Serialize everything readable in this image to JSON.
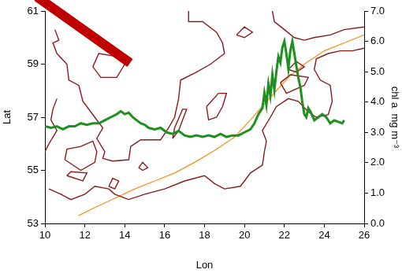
{
  "chart_data": {
    "type": "line",
    "x_label": "Lon",
    "y_label": "Lat",
    "y2_label": "chl a  mg m⁻³",
    "xlim": [
      10,
      26
    ],
    "xticks": [
      10,
      12,
      14,
      16,
      18,
      20,
      22,
      24,
      26
    ],
    "ylim": [
      53,
      61
    ],
    "yticks": [
      53,
      55,
      57,
      59,
      61
    ],
    "y2lim": [
      0,
      7
    ],
    "y2ticks": [
      {
        "value": 0,
        "label": "0.0"
      },
      {
        "value": 1,
        "label": "1.0"
      },
      {
        "value": 2,
        "label": "2.0"
      },
      {
        "value": 3,
        "label": "3.0"
      },
      {
        "value": 4,
        "label": "4.0"
      },
      {
        "value": 5,
        "label": "5.0"
      },
      {
        "value": 6,
        "label": "6.0"
      },
      {
        "value": 7,
        "label": "7.0"
      }
    ],
    "grid": false,
    "marker": "none",
    "line_style": "solid",
    "series": [
      {
        "color": "#8b1a1a",
        "x": [
          17.2,
          17.2,
          17.9,
          18.6,
          18.9,
          19.0,
          18.3,
          17.6,
          16.8,
          16.7,
          16.5,
          16.2,
          15.8,
          14.8,
          14.3,
          14.2,
          13.4,
          12.9,
          13.0,
          12.6,
          12.9,
          12.3,
          11.9,
          11.7,
          11.2,
          11.1,
          10.6,
          10.4,
          10.7,
          10.5,
          null,
          10.6,
          10.4,
          10.3,
          10.6,
          10.2,
          10.0,
          null,
          10.2,
          10.8,
          11.3,
          12.0,
          12.5,
          13.2,
          13.5,
          14.2,
          15.0,
          16.0,
          17.0,
          18.0,
          18.5,
          19.0,
          19.8,
          20.3,
          20.9,
          21.0,
          21.1,
          20.9,
          21.3,
          21.6,
          22.2,
          22.7,
          23.2,
          23.6,
          24.2,
          24.4,
          24.3,
          23.8,
          23.5,
          23.6,
          24.2,
          24.8,
          25.4,
          26.0,
          null,
          21.4,
          21.5,
          22.0,
          22.5,
          23.0,
          23.5,
          24.3,
          25.0,
          26.0,
          null,
          18.1,
          18.7,
          19.1,
          18.9,
          18.6,
          18.2,
          18.1,
          null,
          16.4,
          16.7,
          17.1,
          16.9,
          16.5,
          16.4,
          null,
          14.7,
          14.9,
          15.15,
          14.9,
          14.7,
          null,
          21.8,
          22.3,
          23.2,
          23.0,
          22.1,
          21.8,
          null,
          22.2,
          22.6,
          23.0,
          22.6,
          22.2,
          null,
          11.0,
          11.8,
          12.5,
          12.6,
          12.4,
          11.8,
          11.1,
          11.0,
          null,
          11.1,
          11.9,
          12.1,
          11.3,
          11.1,
          null,
          13.2,
          13.4,
          13.7,
          13.5,
          13.2,
          null,
          12.4,
          12.7,
          13.5,
          14.0,
          13.6,
          12.8,
          12.4,
          null,
          19.6,
          20.0,
          20.4,
          20.0,
          19.6
        ],
        "values": [
          61.0,
          60.6,
          60.6,
          60.2,
          59.8,
          59.4,
          59.0,
          58.7,
          58.4,
          57.7,
          57.0,
          56.6,
          56.15,
          56.15,
          55.9,
          55.4,
          55.35,
          55.45,
          55.7,
          56.2,
          56.6,
          57.2,
          57.6,
          58.2,
          58.4,
          59.0,
          59.4,
          59.8,
          59.9,
          60.3,
          null,
          57.7,
          57.3,
          56.9,
          56.5,
          56.0,
          55.7,
          null,
          54.3,
          54.1,
          53.9,
          54.1,
          54.4,
          54.3,
          54.1,
          53.9,
          54.1,
          54.3,
          54.6,
          54.8,
          54.5,
          54.3,
          54.4,
          54.9,
          55.2,
          55.7,
          56.1,
          56.5,
          57.0,
          57.4,
          57.7,
          57.6,
          57.2,
          57.0,
          57.1,
          57.6,
          58.2,
          58.4,
          58.8,
          59.2,
          59.4,
          59.5,
          59.5,
          59.6,
          null,
          61.0,
          60.6,
          60.3,
          60.0,
          59.9,
          60.0,
          60.1,
          60.3,
          60.4,
          null,
          57.4,
          57.9,
          57.9,
          57.4,
          57.0,
          56.9,
          57.4,
          null,
          56.2,
          56.5,
          57.3,
          57.3,
          56.6,
          56.2,
          null,
          55.1,
          55.3,
          55.1,
          55.0,
          55.1,
          null,
          58.3,
          58.6,
          58.5,
          58.2,
          57.9,
          58.3,
          null,
          58.8,
          59.1,
          58.9,
          58.7,
          58.8,
          null,
          55.4,
          55.0,
          55.3,
          55.7,
          56.1,
          55.9,
          55.8,
          55.4,
          null,
          54.8,
          54.6,
          54.9,
          54.95,
          54.8,
          null,
          54.4,
          54.7,
          54.6,
          54.3,
          54.4,
          null,
          58.9,
          59.4,
          59.3,
          59.0,
          58.5,
          58.5,
          58.9,
          null,
          60.1,
          60.4,
          60.2,
          60.0,
          60.1
        ]
      },
      {
        "color": "#ff8c1a",
        "x": [
          11.7,
          12.5,
          13.5,
          14.5,
          15.5,
          16.5,
          17.5,
          18.5,
          19.5,
          20.3,
          21.0,
          21.6,
          22.2,
          23.0,
          24.0,
          25.0,
          26.0
        ],
        "values": [
          53.3,
          53.6,
          53.95,
          54.3,
          54.6,
          54.9,
          55.3,
          55.75,
          56.25,
          56.9,
          57.5,
          58.0,
          58.5,
          59.0,
          59.5,
          59.8,
          60.1
        ]
      },
      {
        "color": "#1f8f1f",
        "axis": "y2",
        "x": [
          10.0,
          10.3,
          10.6,
          10.9,
          11.2,
          11.5,
          11.8,
          12.1,
          12.4,
          12.7,
          13.0,
          13.3,
          13.6,
          13.8,
          14.0,
          14.2,
          14.4,
          14.6,
          14.8,
          15.0,
          15.2,
          15.5,
          15.8,
          16.1,
          16.4,
          16.7,
          17.0,
          17.3,
          17.6,
          17.9,
          18.2,
          18.5,
          18.8,
          19.1,
          19.4,
          19.7,
          20.0,
          20.3,
          20.5,
          20.7,
          20.9,
          21.0,
          21.1,
          21.2,
          21.3,
          21.4,
          21.5,
          21.6,
          21.7,
          21.8,
          21.9,
          22.0,
          22.1,
          22.2,
          22.3,
          22.4,
          22.5,
          22.6,
          22.7,
          22.8,
          22.9,
          23.0,
          23.1,
          23.2,
          23.3,
          23.5,
          23.7,
          23.9,
          24.1,
          24.3,
          24.5,
          24.7,
          24.9,
          25.0
        ],
        "values": [
          3.2,
          3.15,
          3.2,
          3.1,
          3.2,
          3.2,
          3.3,
          3.25,
          3.3,
          3.3,
          3.4,
          3.5,
          3.6,
          3.7,
          3.6,
          3.65,
          3.5,
          3.4,
          3.3,
          3.25,
          3.15,
          3.1,
          3.15,
          3.0,
          2.95,
          3.05,
          2.9,
          2.85,
          2.9,
          2.85,
          2.9,
          2.85,
          2.95,
          2.85,
          2.9,
          2.9,
          3.0,
          3.1,
          3.3,
          3.6,
          3.8,
          4.3,
          3.9,
          4.6,
          4.2,
          4.9,
          4.4,
          5.0,
          5.5,
          5.3,
          5.8,
          6.0,
          5.6,
          5.1,
          5.7,
          6.0,
          5.6,
          5.2,
          4.8,
          4.5,
          4.0,
          3.6,
          3.5,
          3.8,
          3.7,
          3.4,
          3.5,
          3.6,
          3.5,
          3.3,
          3.4,
          3.35,
          3.3,
          3.4
        ]
      }
    ]
  }
}
